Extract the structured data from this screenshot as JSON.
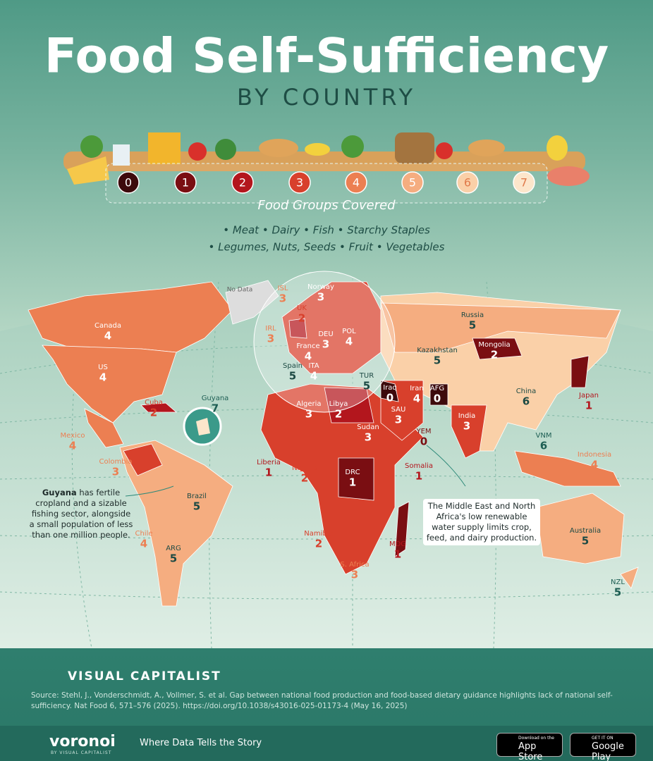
{
  "header": {
    "title": "Food Self-Sufficiency",
    "subtitle": "BY COUNTRY"
  },
  "legend": {
    "levels": [
      0,
      1,
      2,
      3,
      4,
      5,
      6,
      7
    ],
    "colors": [
      "#3d0a0c",
      "#7a0e12",
      "#b3161d",
      "#d8402c",
      "#ec7f52",
      "#f5ad80",
      "#fad0a8",
      "#fde6cb"
    ],
    "label": "Food Groups Covered",
    "groups_lines": [
      "• Meat • Dairy • Fish • Starchy Staples",
      "• Legumes, Nuts, Seeds • Fruit • Vegetables"
    ]
  },
  "map": {
    "no_data": "No Data",
    "countries": [
      {
        "name": "Canada",
        "value": 4
      },
      {
        "name": "US",
        "value": 4
      },
      {
        "name": "ISL",
        "value": 3
      },
      {
        "name": "Norway",
        "value": 3
      },
      {
        "name": "UK",
        "value": 2
      },
      {
        "name": "IRL",
        "value": 3
      },
      {
        "name": "DEU",
        "value": 3
      },
      {
        "name": "POL",
        "value": 4
      },
      {
        "name": "France",
        "value": 4
      },
      {
        "name": "Spain",
        "value": 5
      },
      {
        "name": "ITA",
        "value": 4
      },
      {
        "name": "TUR",
        "value": 5
      },
      {
        "name": "Russia",
        "value": 5
      },
      {
        "name": "Kazakhstan",
        "value": 5
      },
      {
        "name": "Mongolia",
        "value": 2
      },
      {
        "name": "Iraq",
        "value": 0
      },
      {
        "name": "AFG",
        "value": 0
      },
      {
        "name": "Iran",
        "value": 4
      },
      {
        "name": "SAU",
        "value": 3
      },
      {
        "name": "YEM",
        "value": 0
      },
      {
        "name": "China",
        "value": 6
      },
      {
        "name": "Japan",
        "value": 1
      },
      {
        "name": "Cuba",
        "value": 2
      },
      {
        "name": "Guyana",
        "value": 7
      },
      {
        "name": "Mexico",
        "value": 4
      },
      {
        "name": "Colombia",
        "value": 3
      },
      {
        "name": "Algeria",
        "value": 3
      },
      {
        "name": "Libya",
        "value": 2
      },
      {
        "name": "Sudan",
        "value": 3
      },
      {
        "name": "India",
        "value": 3
      },
      {
        "name": "VNM",
        "value": 6
      },
      {
        "name": "Indonesia",
        "value": 4
      },
      {
        "name": "Liberia",
        "value": 1
      },
      {
        "name": "Nigeria",
        "value": 2
      },
      {
        "name": "DRC",
        "value": 1
      },
      {
        "name": "Somalia",
        "value": 1
      },
      {
        "name": "Brazil",
        "value": 5
      },
      {
        "name": "Chile",
        "value": 4
      },
      {
        "name": "ARG",
        "value": 5
      },
      {
        "name": "Namibia",
        "value": 2
      },
      {
        "name": "MDG",
        "value": 1
      },
      {
        "name": "S. Africa",
        "value": 3
      },
      {
        "name": "Australia",
        "value": 5
      },
      {
        "name": "NZL",
        "value": 5
      }
    ]
  },
  "annotations": [
    {
      "bold": "Guyana",
      "text": " has fertile cropland and a sizable fishing sector, alongside a small population of less than one million people."
    },
    {
      "bold": "",
      "text": "The Middle East and North Africa's low renewable water supply limits crop, feed, and dairy production."
    }
  ],
  "footer": {
    "brand": "VISUAL CAPITALIST",
    "source": "Source: Stehl, J., Vonderschmidt, A., Vollmer, S. et al. Gap between national food production and food-based dietary guidance highlights lack of national self-sufficiency. Nat Food 6, 571–576 (2025). https://doi.org/10.1038/s43016-025-01173-4 (May 16, 2025)",
    "app_name": "voronoi",
    "app_by": "BY VISUAL CAPITALIST",
    "tagline": "Where Data Tells the Story",
    "appstore_small": "Download on the",
    "appstore": "App Store",
    "play_small": "GET IT ON",
    "play": "Google Play"
  }
}
